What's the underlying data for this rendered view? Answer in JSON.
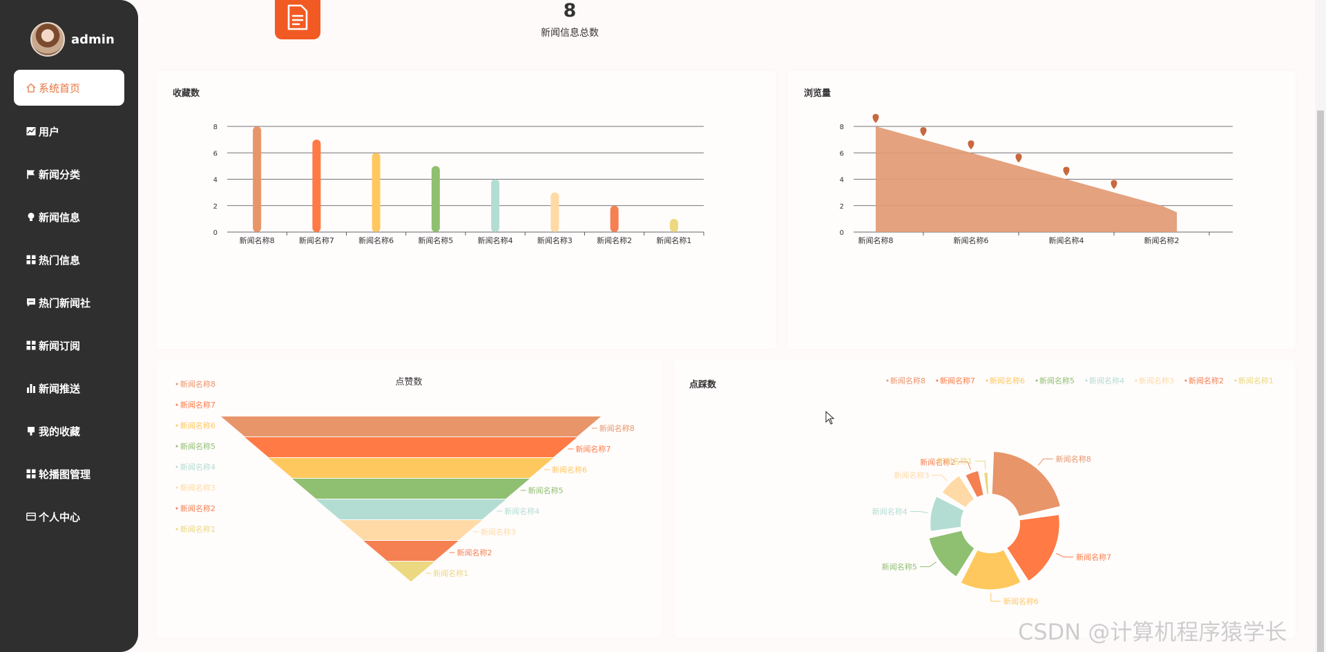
{
  "user": {
    "name": "admin"
  },
  "menu": [
    {
      "label": "系统首页",
      "icon": "home-icon",
      "active": true
    },
    {
      "label": "用户",
      "icon": "line-chart-icon"
    },
    {
      "label": "新闻分类",
      "icon": "flag-icon"
    },
    {
      "label": "新闻信息",
      "icon": "bulb-icon"
    },
    {
      "label": "热门信息",
      "icon": "grid-icon"
    },
    {
      "label": "热门新闻社",
      "icon": "message-icon"
    },
    {
      "label": "新闻订阅",
      "icon": "grid-icon"
    },
    {
      "label": "新闻推送",
      "icon": "bar-chart-icon"
    },
    {
      "label": "我的收藏",
      "icon": "bookmark-icon"
    },
    {
      "label": "轮播图管理",
      "icon": "grid-icon"
    },
    {
      "label": "个人中心",
      "icon": "card-icon"
    }
  ],
  "stat": {
    "value": "8",
    "label": "新闻信息总数",
    "icon": "document-icon"
  },
  "watermark": "CSDN @计算机程序猿学长",
  "palette": [
    "#e8956a",
    "#ff7a45",
    "#ffc85e",
    "#8fbf70",
    "#b3ddd3",
    "#ffdaa6",
    "#f58052",
    "#ebd880"
  ],
  "chart_data": [
    {
      "type": "bar",
      "title": "收藏数",
      "categories": [
        "新闻名称8",
        "新闻名称7",
        "新闻名称6",
        "新闻名称5",
        "新闻名称4",
        "新闻名称3",
        "新闻名称2",
        "新闻名称1"
      ],
      "values": [
        8,
        7,
        6,
        5,
        4,
        3,
        2,
        1
      ],
      "ylim": [
        0,
        8
      ],
      "yticks": [
        "0",
        "2",
        "4",
        "6",
        "8"
      ]
    },
    {
      "type": "area",
      "title": "浏览量",
      "categories": [
        "新闻名称8",
        "新闻名称7",
        "新闻名称6",
        "新闻名称5",
        "新闻名称4",
        "新闻名称3",
        "新闻名称2"
      ],
      "x_labels": [
        "新闻名称8",
        "新闻名称6",
        "新闻名称4",
        "新闻名称2"
      ],
      "values": [
        8,
        7,
        6,
        5,
        4,
        3,
        2
      ],
      "end_value": 1.5,
      "ylim": [
        0,
        8
      ],
      "yticks": [
        "0",
        "2",
        "4",
        "6",
        "8"
      ]
    },
    {
      "type": "funnel",
      "title": "点赞数",
      "categories": [
        "新闻名称8",
        "新闻名称7",
        "新闻名称6",
        "新闻名称5",
        "新闻名称4",
        "新闻名称3",
        "新闻名称2",
        "新闻名称1"
      ],
      "values": [
        8,
        7,
        6,
        5,
        4,
        3,
        2,
        1
      ],
      "legend": [
        "新闻名称8",
        "新闻名称7",
        "新闻名称6",
        "新闻名称5",
        "新闻名称4",
        "新闻名称3",
        "新闻名称2",
        "新闻名称1"
      ]
    },
    {
      "type": "pie",
      "title": "点踩数",
      "categories": [
        "新闻名称8",
        "新闻名称7",
        "新闻名称6",
        "新闻名称5",
        "新闻名称4",
        "新闻名称3",
        "新闻名称2",
        "新闻名称1"
      ],
      "values": [
        8,
        7,
        6,
        5,
        4,
        3,
        2,
        1
      ],
      "legend": [
        "新闻名称8",
        "新闻名称7",
        "新闻名称6",
        "新闻名称5",
        "新闻名称4",
        "新闻名称3",
        "新闻名称2",
        "新闻名称1"
      ]
    }
  ]
}
